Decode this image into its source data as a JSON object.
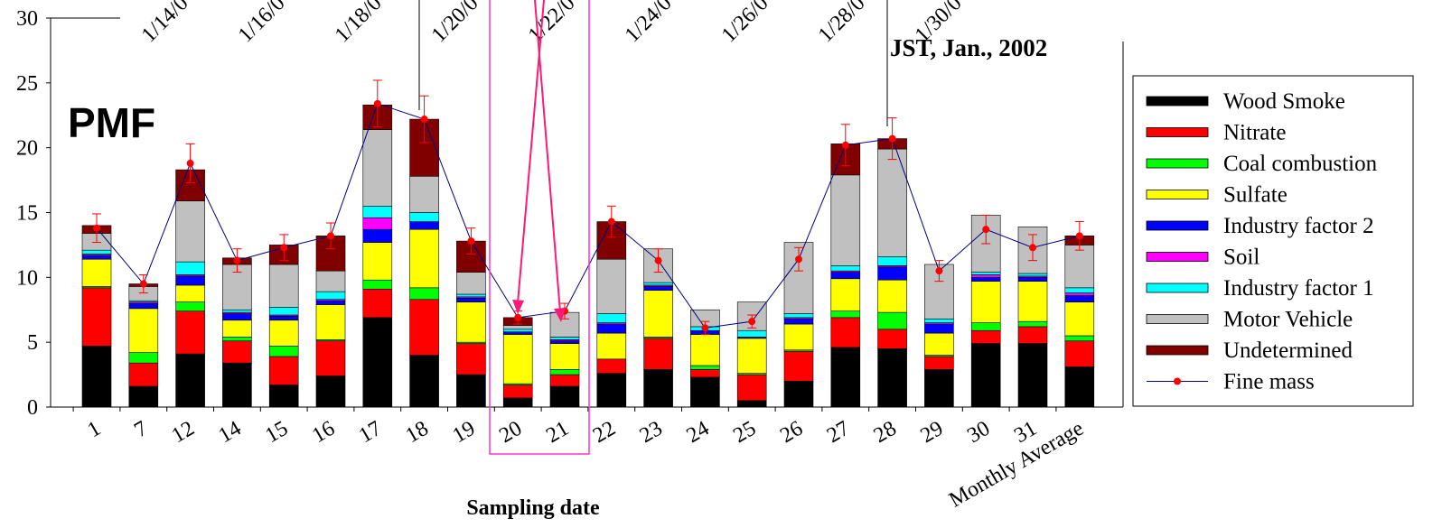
{
  "chart_data": {
    "type": "bar",
    "stacked": true,
    "panel_label": "PMF",
    "subtitle": "JST, Jan., 2002",
    "xlabel": "Sampling date",
    "ylabel": "",
    "ylim": [
      0,
      30
    ],
    "yticks": [
      0,
      5,
      10,
      15,
      20,
      25,
      30
    ],
    "categories": [
      "1",
      "7",
      "12",
      "14",
      "15",
      "16",
      "17",
      "18",
      "19",
      "20",
      "21",
      "22",
      "23",
      "24",
      "25",
      "26",
      "27",
      "28",
      "29",
      "30",
      "31",
      "Monthly Average"
    ],
    "top_date_labels": [
      "1/14/0",
      "1/16/0",
      "1/18/0",
      "1/20/0",
      "1/22/0",
      "1/24/0",
      "1/26/0",
      "1/28/0",
      "1/30/0"
    ],
    "legend_position": "right",
    "series": [
      {
        "name": "Wood Smoke",
        "color": "#000000",
        "values": [
          4.7,
          1.6,
          4.1,
          3.4,
          1.7,
          2.4,
          6.9,
          4.0,
          2.5,
          0.7,
          1.6,
          2.6,
          2.9,
          2.3,
          0.5,
          2.0,
          4.6,
          4.5,
          2.9,
          4.9,
          4.9,
          3.1
        ]
      },
      {
        "name": "Nitrate",
        "color": "#ff0000",
        "values": [
          4.5,
          1.8,
          3.3,
          1.7,
          2.2,
          2.7,
          2.2,
          4.3,
          2.4,
          1.0,
          0.9,
          1.1,
          2.4,
          0.6,
          2.0,
          2.3,
          2.3,
          1.5,
          1.0,
          1.0,
          1.3,
          2.0
        ]
      },
      {
        "name": "Coal combustion",
        "color": "#00ff00",
        "values": [
          0.1,
          0.8,
          0.7,
          0.3,
          0.8,
          0.1,
          0.7,
          0.9,
          0.1,
          0.1,
          0.4,
          0.0,
          0.1,
          0.3,
          0.1,
          0.1,
          0.5,
          1.3,
          0.1,
          0.6,
          0.4,
          0.4
        ]
      },
      {
        "name": "Sulfate",
        "color": "#ffff00",
        "values": [
          2.1,
          3.4,
          1.3,
          1.3,
          2.0,
          2.7,
          2.9,
          4.5,
          3.1,
          3.8,
          2.0,
          2.0,
          3.6,
          2.4,
          2.7,
          2.0,
          2.5,
          2.5,
          1.7,
          3.2,
          3.1,
          2.6
        ]
      },
      {
        "name": "Industry factor 2",
        "color": "#0000ff",
        "values": [
          0.3,
          0.4,
          0.7,
          0.5,
          0.3,
          0.3,
          1.0,
          0.6,
          0.3,
          0.2,
          0.2,
          0.7,
          0.3,
          0.3,
          0.1,
          0.4,
          0.5,
          1.0,
          0.7,
          0.3,
          0.3,
          0.5
        ]
      },
      {
        "name": "Soil",
        "color": "#ff00ff",
        "values": [
          0.1,
          0.1,
          0.1,
          0.1,
          0.1,
          0.1,
          0.9,
          0.0,
          0.1,
          0.0,
          0.1,
          0.1,
          0.1,
          0.0,
          0.0,
          0.1,
          0.1,
          0.1,
          0.1,
          0.2,
          0.1,
          0.2
        ]
      },
      {
        "name": "Industry factor 1",
        "color": "#00ffff",
        "values": [
          0.3,
          0.1,
          1.0,
          0.2,
          0.6,
          0.6,
          0.9,
          0.7,
          0.2,
          0.2,
          0.2,
          0.7,
          0.2,
          0.3,
          0.5,
          0.3,
          0.4,
          0.7,
          0.3,
          0.2,
          0.2,
          0.4
        ]
      },
      {
        "name": "Motor Vehicle",
        "color": "#c0c0c0",
        "values": [
          1.3,
          1.1,
          4.7,
          3.5,
          3.3,
          1.6,
          5.9,
          2.8,
          1.7,
          0.3,
          1.9,
          4.2,
          2.6,
          1.3,
          2.2,
          5.5,
          7.0,
          8.3,
          4.2,
          4.4,
          3.6,
          3.3
        ]
      },
      {
        "name": "Undetermined",
        "color": "#800000",
        "values": [
          0.6,
          0.2,
          2.4,
          0.5,
          1.5,
          2.7,
          1.9,
          4.4,
          2.4,
          0.6,
          0.0,
          2.9,
          0.0,
          0.0,
          0.0,
          0.0,
          2.4,
          0.8,
          0.0,
          0.0,
          0.0,
          0.7
        ]
      }
    ],
    "line_series": {
      "name": "Fine mass",
      "color": "#000080",
      "marker_color": "#ff0000",
      "values": [
        13.8,
        9.5,
        18.8,
        11.3,
        12.3,
        13.2,
        23.4,
        22.2,
        12.8,
        6.9,
        7.4,
        14.3,
        11.3,
        6.1,
        6.6,
        11.4,
        20.2,
        20.7,
        10.5,
        13.7,
        12.3,
        13.2
      ],
      "error": [
        1.1,
        0.7,
        1.5,
        0.9,
        1.0,
        1.0,
        1.8,
        1.8,
        1.0,
        0.5,
        0.6,
        1.2,
        0.9,
        0.5,
        0.5,
        0.9,
        1.6,
        1.6,
        0.8,
        1.1,
        1.0,
        1.1
      ]
    }
  }
}
